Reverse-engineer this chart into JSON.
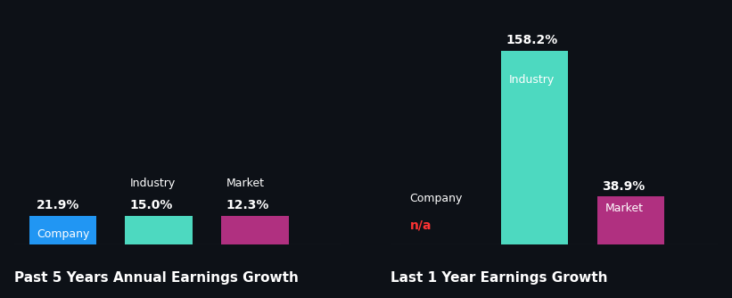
{
  "background_color": "#0d1117",
  "left_chart": {
    "title": "Past 5 Years Annual Earnings Growth",
    "bars": [
      {
        "label": "Company",
        "value": 21.9,
        "color": "#2196f3",
        "label_inside": true
      },
      {
        "label": "Industry",
        "value": 15.0,
        "color": "#4dd9c0",
        "label_inside": false
      },
      {
        "label": "Market",
        "value": 12.3,
        "color": "#b03080",
        "label_inside": false
      }
    ],
    "ylim_max": 180
  },
  "right_chart": {
    "title": "Last 1 Year Earnings Growth",
    "bars": [
      {
        "label": "Company",
        "value": null,
        "color": "#2196f3",
        "label_inside": false
      },
      {
        "label": "Industry",
        "value": 158.2,
        "color": "#4dd9c0",
        "label_inside": true
      },
      {
        "label": "Market",
        "value": 38.9,
        "color": "#b03080",
        "label_inside": true
      }
    ],
    "ylim_max": 180
  },
  "text_color": "#ffffff",
  "na_color": "#ff3333",
  "label_inside_color": "#ffffff",
  "value_text_color": "#ffffff",
  "title_fontsize": 11,
  "bar_label_fontsize": 9,
  "value_fontsize": 10,
  "divider_color": "#444455"
}
